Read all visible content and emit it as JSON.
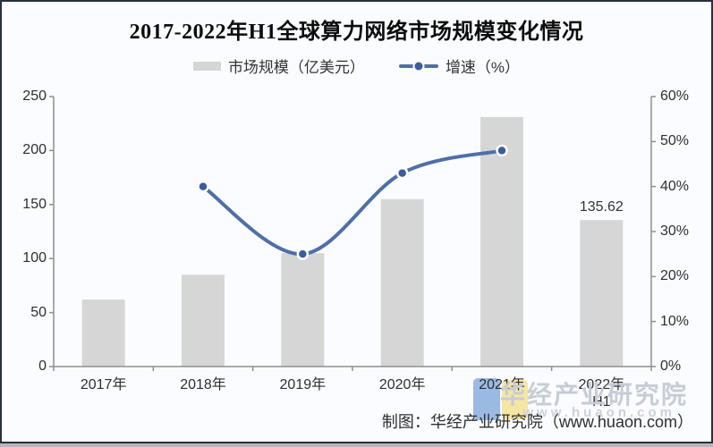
{
  "title": "2017-2022年H1全球算力网络市场规模变化情况",
  "legend": {
    "items": [
      {
        "label": "市场规模（亿美元）",
        "swatch": "bar",
        "color": "#d6d6d6"
      },
      {
        "label": "增速（%）",
        "swatch": "line",
        "color": "#4e6fa6"
      }
    ]
  },
  "chart_data": {
    "type": "bar",
    "title": "2017-2022年H1全球算力网络市场规模变化情况",
    "categories": [
      "2017年",
      "2018年",
      "2019年",
      "2020年",
      "2021年",
      "2022年H1"
    ],
    "category_lines": [
      [
        "2017年"
      ],
      [
        "2018年"
      ],
      [
        "2019年"
      ],
      [
        "2020年"
      ],
      [
        "2021年"
      ],
      [
        "2022年",
        "H1"
      ]
    ],
    "series": [
      {
        "name": "市场规模（亿美元）",
        "type": "bar",
        "axis": "left",
        "values": [
          62,
          85,
          105,
          155,
          231,
          135.62
        ],
        "color": "#d6d6d6"
      },
      {
        "name": "增速（%）",
        "type": "line",
        "axis": "right",
        "categories": [
          "2018年",
          "2019年",
          "2020年",
          "2021年"
        ],
        "values": [
          40,
          25,
          43,
          48
        ],
        "color": "#4e6fa6",
        "marker_color": "#3d5c9b"
      }
    ],
    "bar_value_labels": [
      null,
      null,
      null,
      null,
      null,
      "135.62"
    ],
    "left_axis": {
      "ticks": [
        0,
        50,
        100,
        150,
        200,
        250
      ],
      "min": 0,
      "max": 250
    },
    "right_axis": {
      "tick_labels": [
        "0%",
        "10%",
        "20%",
        "30%",
        "40%",
        "50%",
        "60%"
      ],
      "tick_values": [
        0,
        10,
        20,
        30,
        40,
        50,
        60
      ],
      "min": 0,
      "max": 60
    },
    "grid": false,
    "legend_position": "top"
  },
  "watermark": {
    "brand": "华经产业研究院",
    "url": "www.huaon.com"
  },
  "credit": "制图：华经产业研究院（www.huaon.com）",
  "colors": {
    "background": "#fbfcff",
    "border": "#2b3040",
    "bar": "#d6d6d6",
    "line": "#4e6fa6",
    "marker": "#3d5c9b",
    "axis": "#8f8f8f",
    "watermark": "#c8ccd5",
    "logo_blue": "#88aede",
    "logo_yellow": "#f4e39a"
  }
}
